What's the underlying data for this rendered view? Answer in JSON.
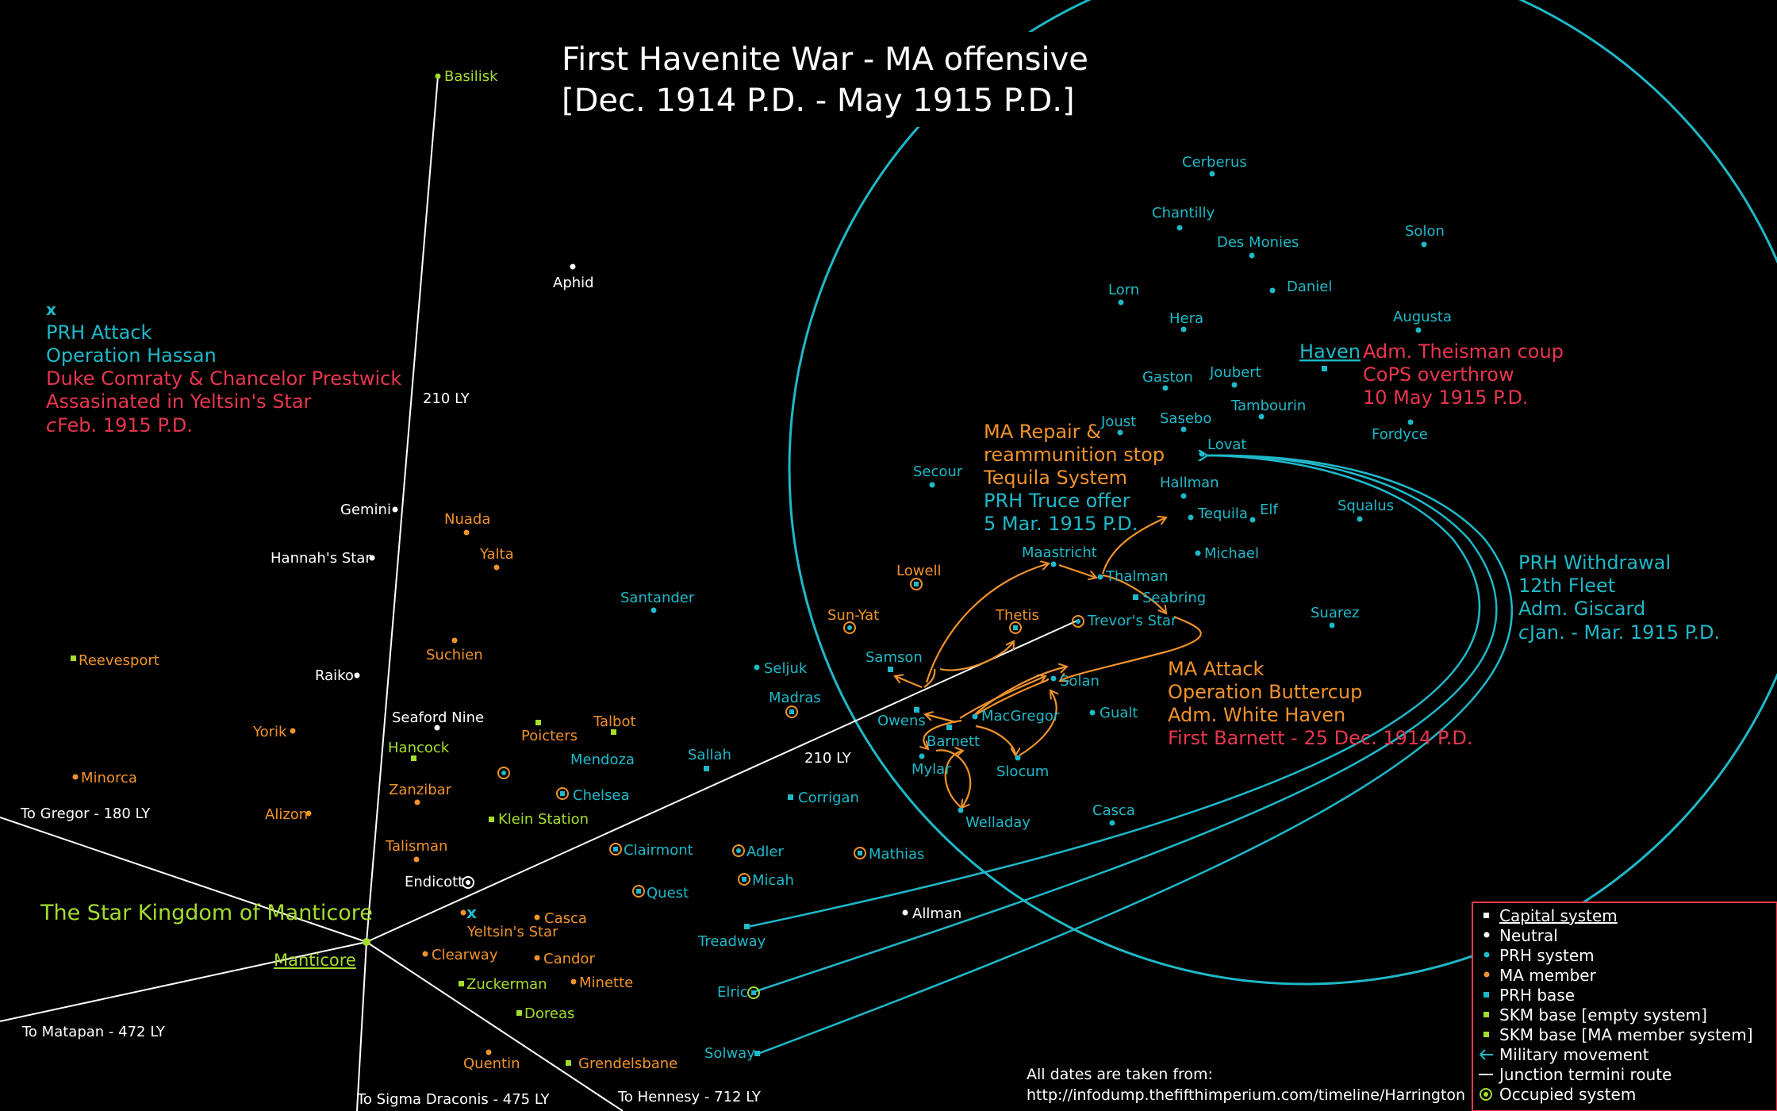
{
  "title": {
    "line1": "First Havenite War - MA offensive",
    "line2": "[Dec. 1914 P.D. - May 1915 P.D.]"
  },
  "colors": {
    "neutral": "#ffffff",
    "prh": "#1fb9c9",
    "ma": "#f0932b",
    "skm": "#a4dd2c",
    "red": "#e8364f",
    "legend_border": "#e8364f"
  },
  "systems": {
    "basilisk": "Basilisk",
    "aphid": "Aphid",
    "gemini": "Gemini",
    "hannahs_star": "Hannah's Star",
    "raiko": "Raiko",
    "seaford_nine": "Seaford Nine",
    "endicott": "Endicott",
    "allman": "Allman",
    "nuada": "Nuada",
    "yalta": "Yalta",
    "suchien": "Suchien",
    "yorik": "Yorik",
    "minorca": "Minorca",
    "alizon": "Alizon",
    "zanzibar": "Zanzibar",
    "talisman": "Talisman",
    "poicters": "Poicters",
    "talbot": "Talbot",
    "casca_ma": "Casca",
    "clearway": "Clearway",
    "candor": "Candor",
    "minette": "Minette",
    "quentin": "Quentin",
    "lowell": "Lowell",
    "sun_yat": "Sun-Yat",
    "thetis": "Thetis",
    "madras": "Madras",
    "chelsea": "Chelsea",
    "mendoza": "Mendoza",
    "clairmont": "Clairmont",
    "quest": "Quest",
    "adler": "Adler",
    "micah": "Micah",
    "mathias": "Mathias",
    "trevors_star": "Trevor's Star",
    "elric": "Elric",
    "reevesport": "Reevesport",
    "hancock": "Hancock",
    "klein_station": "Klein Station",
    "zuckerman": "Zuckerman",
    "doreas": "Doreas",
    "grendelsbane": "Grendelsbane",
    "manticore": "Manticore",
    "yeltsins_star": "Yeltsin's Star",
    "cerberus": "Cerberus",
    "chantilly": "Chantilly",
    "des_monies": "Des Monies",
    "solon": "Solon",
    "lorn": "Lorn",
    "daniel": "Daniel",
    "hera": "Hera",
    "augusta": "Augusta",
    "haven": "Haven",
    "gaston": "Gaston",
    "joubert": "Joubert",
    "tambourin": "Tambourin",
    "joust": "Joust",
    "sasebo": "Sasebo",
    "fordyce": "Fordyce",
    "lovat": "Lovat",
    "secour": "Secour",
    "hallman": "Hallman",
    "tequila": "Tequila",
    "elf": "Elf",
    "squalus": "Squalus",
    "michael": "Michael",
    "maastricht": "Maastricht",
    "thalman": "Thalman",
    "seabring": "Seabring",
    "suarez": "Suarez",
    "santander": "Santander",
    "samson": "Samson",
    "seljuk": "Seljuk",
    "solan": "Solan",
    "owens": "Owens",
    "macgregor": "MacGregor",
    "gualt": "Gualt",
    "barnett": "Barnett",
    "mylar": "Mylar",
    "slocum": "Slocum",
    "sallah": "Sallah",
    "corrigan": "Corrigan",
    "welladay": "Welladay",
    "casca_prh": "Casca",
    "treadway": "Treadway",
    "solway": "Solway"
  },
  "routes": {
    "to_gregor": "To Gregor - 180 LY",
    "to_matapan": "To Matapan - 472 LY",
    "to_sigma_draconis": "To Sigma Draconis - 475 LY",
    "to_hennesy": "To Hennesy - 712 LY",
    "dist_basilisk": "210 LY",
    "dist_trevor": "210 LY"
  },
  "kingdom_label": "The Star Kingdom of Manticore",
  "annotations": {
    "prh_attack": {
      "marker": "x",
      "l1": "PRH Attack",
      "l2": "Operation Hassan",
      "l3": "Duke Comraty & Chancelor Prestwick",
      "l4": "Assasinated in Yeltsin's Star",
      "l5_prefix": "c",
      "l5": "Feb. 1915 P.D."
    },
    "ma_repair": {
      "l1": "MA Repair &",
      "l2": "reammunition stop",
      "l3": "Tequila System",
      "l4": "PRH Truce offer",
      "l5": "5 Mar. 1915 P.D."
    },
    "haven_coup": {
      "l1": "Adm. Theisman coup",
      "l2": "CoPS overthrow",
      "l3": "10 May 1915 P.D."
    },
    "prh_withdrawal": {
      "l1": "PRH Withdrawal",
      "l2": "12th Fleet",
      "l3": "Adm. Giscard",
      "l4_prefix": "c",
      "l4": "Jan. - Mar. 1915 P.D."
    },
    "ma_attack": {
      "l1": "MA Attack",
      "l2": "Operation Buttercup",
      "l3": "Adm. White Haven",
      "l4": "First Barnett - 25 Dec. 1914 P.D."
    }
  },
  "source": {
    "line1": "All dates are taken from:",
    "line2": "http://infodump.thefifthimperium.com/timeline/Harrington"
  },
  "legend": {
    "capital": "Capital system",
    "neutral": "Neutral",
    "prh_system": "PRH system",
    "ma_member": "MA member",
    "prh_base": "PRH base",
    "skm_empty": "SKM base [empty system]",
    "skm_ma": "SKM base [MA member system]",
    "military": "Military movement",
    "junction": "Junction termini route",
    "occupied": "Occupied system"
  }
}
